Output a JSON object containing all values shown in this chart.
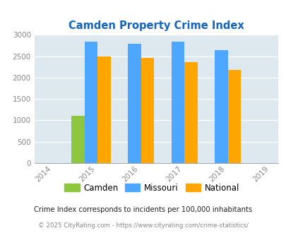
{
  "title": "Camden Property Crime Index",
  "years": [
    2014,
    2015,
    2016,
    2017,
    2018,
    2019
  ],
  "bar_years": [
    2015,
    2016,
    2017,
    2018
  ],
  "camden": [
    1100,
    0,
    0,
    0
  ],
  "missouri": [
    2850,
    2800,
    2840,
    2650
  ],
  "national": [
    2500,
    2470,
    2360,
    2190
  ],
  "camden_color": "#8DC63F",
  "missouri_color": "#4DA6FF",
  "national_color": "#FFA500",
  "bg_color": "#DDE9EE",
  "title_color": "#1565C0",
  "ylim": [
    0,
    3000
  ],
  "yticks": [
    0,
    500,
    1000,
    1500,
    2000,
    2500,
    3000
  ],
  "footer_note": "Crime Index corresponds to incidents per 100,000 inhabitants",
  "copyright": "© 2025 CityRating.com - https://www.cityrating.com/crime-statistics/",
  "legend_labels": [
    "Camden",
    "Missouri",
    "National"
  ],
  "bar_width": 0.3
}
